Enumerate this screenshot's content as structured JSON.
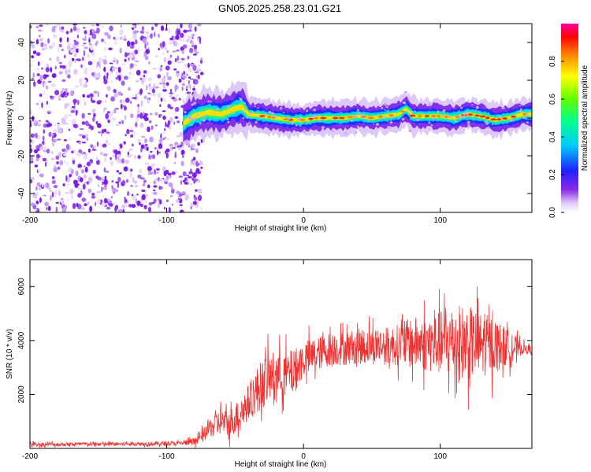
{
  "chart_data": [
    {
      "type": "heatmap",
      "title": "GN05.2025.258.23.01.G21",
      "xlabel": "Height of straight line (km)",
      "ylabel": "Frequency (Hz)",
      "xlim": [
        -200,
        167
      ],
      "ylim": [
        -50,
        50
      ],
      "xticks": [
        "-200",
        "-100",
        "0",
        "100"
      ],
      "xtick_values": [
        -200,
        -100,
        0,
        100
      ],
      "yticks": [
        "40",
        "20",
        "0",
        "-20",
        "-40"
      ],
      "ytick_values": [
        40,
        20,
        0,
        -20,
        -40
      ],
      "noise_region_x": [
        -200,
        -80
      ],
      "signal_track": {
        "x": [
          -88,
          -80,
          -70,
          -60,
          -50,
          -45,
          -40,
          -30,
          -20,
          -10,
          0,
          10,
          20,
          30,
          40,
          50,
          60,
          70,
          75,
          80,
          90,
          100,
          110,
          120,
          130,
          140,
          150,
          160,
          167
        ],
        "y": [
          -3,
          1,
          3,
          2,
          5,
          6,
          2,
          1,
          0,
          -1,
          -1,
          0,
          0,
          0,
          1,
          0,
          1,
          2,
          5,
          1,
          1,
          1,
          0,
          2,
          1,
          -1,
          0,
          2,
          2
        ]
      },
      "colorbar": {
        "label": "Normalized spectral amplitude",
        "ticks": [
          "0.0",
          "0.2",
          "0.4",
          "0.6",
          "0.8"
        ],
        "tick_values": [
          0.0,
          0.2,
          0.4,
          0.6,
          0.8
        ],
        "range": [
          0,
          1
        ]
      }
    },
    {
      "type": "line",
      "title": "",
      "xlabel": "Height of straight line (km)",
      "ylabel": "SNR (10 * v/v)",
      "xlim": [
        -200,
        167
      ],
      "ylim": [
        0,
        7000
      ],
      "xticks": [
        "-200",
        "-100",
        "0",
        "100"
      ],
      "xtick_values": [
        -200,
        -100,
        0,
        100
      ],
      "yticks": [
        "6000",
        "4000",
        "2000"
      ],
      "ytick_values": [
        6000,
        4000,
        2000
      ],
      "line_color": "#ee3333",
      "series": [
        {
          "name": "SNR",
          "x": [
            -200,
            -180,
            -160,
            -140,
            -120,
            -100,
            -90,
            -80,
            -75,
            -70,
            -65,
            -60,
            -55,
            -50,
            -45,
            -40,
            -35,
            -30,
            -25,
            -20,
            -15,
            -10,
            -5,
            0,
            10,
            20,
            30,
            40,
            50,
            60,
            70,
            80,
            90,
            100,
            110,
            120,
            130,
            140,
            150,
            160,
            167
          ],
          "y": [
            150,
            150,
            160,
            160,
            170,
            180,
            190,
            250,
            400,
            700,
            900,
            1000,
            900,
            1100,
            1400,
            1700,
            2100,
            2400,
            2600,
            2800,
            2700,
            2800,
            3000,
            3300,
            3500,
            3700,
            3700,
            3800,
            3800,
            3800,
            3850,
            3900,
            3900,
            3900,
            3950,
            3900,
            3850,
            3800,
            3750,
            3700,
            3650
          ],
          "spread": [
            100,
            100,
            100,
            100,
            100,
            120,
            120,
            200,
            300,
            500,
            600,
            700,
            700,
            800,
            900,
            1000,
            1200,
            1300,
            1300,
            1200,
            1200,
            1200,
            1100,
            1000,
            900,
            900,
            900,
            900,
            1000,
            1000,
            1100,
            1400,
            1500,
            1700,
            2000,
            2000,
            1700,
            1500,
            900,
            300,
            200
          ]
        }
      ]
    }
  ]
}
